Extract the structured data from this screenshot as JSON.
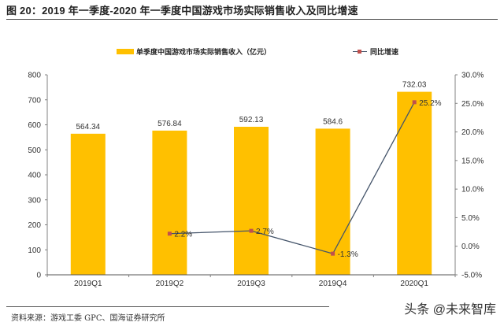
{
  "header": {
    "title": "图 20：2019 年一季度-2020 年一季度中国游戏市场实际销售收入及同比增速"
  },
  "legend": {
    "bar_label": "单季度中国游戏市场实际销售收入（亿元）",
    "line_label": "同比增速"
  },
  "colors": {
    "bar": "#FFC000",
    "line": "#44546A",
    "marker": "#C0504D",
    "axis": "#808080"
  },
  "chart_data": {
    "type": "bar",
    "title": "2019 年一季度-2020 年一季度中国游戏市场实际销售收入及同比增速",
    "categories": [
      "2019Q1",
      "2019Q2",
      "2019Q3",
      "2019Q4",
      "2020Q1"
    ],
    "series": [
      {
        "name": "单季度中国游戏市场实际销售收入（亿元）",
        "type": "bar",
        "axis": "left",
        "values": [
          564.34,
          576.84,
          592.13,
          584.6,
          732.03
        ],
        "labels": [
          "564.34",
          "576.84",
          "592.13",
          "584.6",
          "732.03"
        ]
      },
      {
        "name": "同比增速",
        "type": "line",
        "axis": "right",
        "values": [
          null,
          2.2,
          2.7,
          -1.3,
          25.2
        ],
        "labels": [
          "",
          "2.2%",
          "2.7%",
          "-1.3%",
          "25.2%"
        ]
      }
    ],
    "left_axis": {
      "ylim": [
        0,
        800
      ],
      "ticks": [
        "0",
        "100",
        "200",
        "300",
        "400",
        "500",
        "600",
        "700",
        "800"
      ]
    },
    "right_axis": {
      "ylim": [
        -5,
        30
      ],
      "ticks": [
        "-5.0%",
        "0.0%",
        "5.0%",
        "10.0%",
        "15.0%",
        "20.0%",
        "25.0%",
        "30.0%"
      ]
    },
    "xlabel": "",
    "ylabel": "",
    "grid": false,
    "legend_position": "top"
  },
  "footer": {
    "source": "资料来源：游戏工委 GPC、国海证券研究所",
    "watermark": "头条 @未来智库"
  }
}
